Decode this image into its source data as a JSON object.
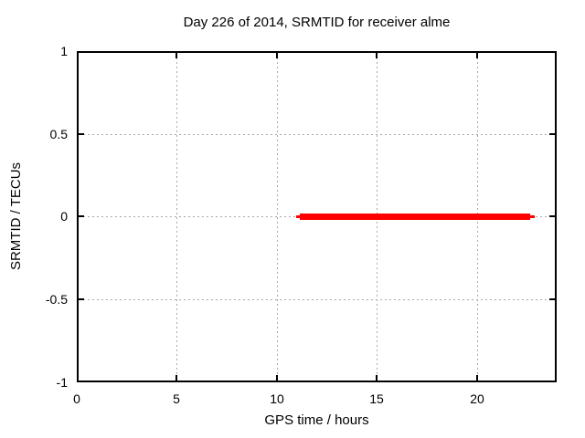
{
  "title": "Day 226 of 2014, SRMTID for receiver alme",
  "axes": {
    "x": {
      "label": "GPS time / hours",
      "range": [
        0,
        24
      ],
      "tick_values": [
        0,
        5,
        10,
        15,
        20
      ],
      "tick_labels": [
        "0",
        "5",
        "10",
        "15",
        "20"
      ]
    },
    "y": {
      "label": "SRMTID / TECUs",
      "range": [
        -1,
        1
      ],
      "tick_values": [
        1,
        0.5,
        0,
        -0.5,
        -1
      ],
      "tick_labels": [
        "1",
        "0.5",
        "0",
        "-0.5",
        "-1"
      ]
    }
  },
  "colors": {
    "series": "#ff0000",
    "grid": "#a8a8a8",
    "border": "#000000",
    "background": "#ffffff",
    "text": "#000000"
  },
  "chart_data": {
    "type": "line",
    "title": "Day 226 of 2014, SRMTID for receiver alme",
    "xlabel": "GPS time / hours",
    "ylabel": "SRMTID / TECUs",
    "xlim": [
      0,
      24
    ],
    "ylim": [
      -1,
      1
    ],
    "grid": true,
    "legend": false,
    "series": [
      {
        "name": "SRMTID",
        "color": "#ff0000",
        "style": "thick horizontal segment",
        "x": [
          11.0,
          22.9
        ],
        "y": [
          0,
          0
        ]
      }
    ]
  }
}
